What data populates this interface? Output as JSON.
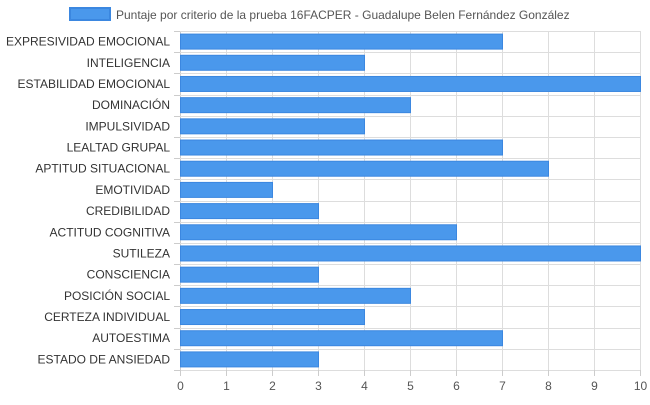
{
  "chart_data": {
    "type": "bar",
    "orientation": "horizontal",
    "categories": [
      "EXPRESIVIDAD EMOCIONAL",
      "INTELIGENCIA",
      "ESTABILIDAD EMOCIONAL",
      "DOMINACIÓN",
      "IMPULSIVIDAD",
      "LEALTAD GRUPAL",
      "APTITUD SITUACIONAL",
      "EMOTIVIDAD",
      "CREDIBILIDAD",
      "ACTITUD COGNITIVA",
      "SUTILEZA",
      "CONSCIENCIA",
      "POSICIÓN SOCIAL",
      "CERTEZA INDIVIDUAL",
      "AUTOESTIMA",
      "ESTADO DE ANSIEDAD"
    ],
    "series": [
      {
        "name": "Puntaje por criterio de la prueba 16FACPER - Guadalupe Belen Fernández González",
        "values": [
          7,
          4,
          10,
          5,
          4,
          7,
          8,
          2,
          3,
          6,
          10,
          3,
          5,
          4,
          7,
          3
        ]
      }
    ],
    "xlim": [
      0,
      10
    ],
    "xticks": [
      "0",
      "1",
      "2",
      "3",
      "4",
      "5",
      "6",
      "7",
      "8",
      "9",
      "10"
    ],
    "grid": true,
    "legend_position": "top",
    "colors": {
      "bar_fill": "#4a98ec",
      "bar_stroke": "#3b87e0",
      "grid": "#dddddd",
      "axis": "#cccccc",
      "label_text": "#333333",
      "tick_text": "#555555"
    }
  }
}
